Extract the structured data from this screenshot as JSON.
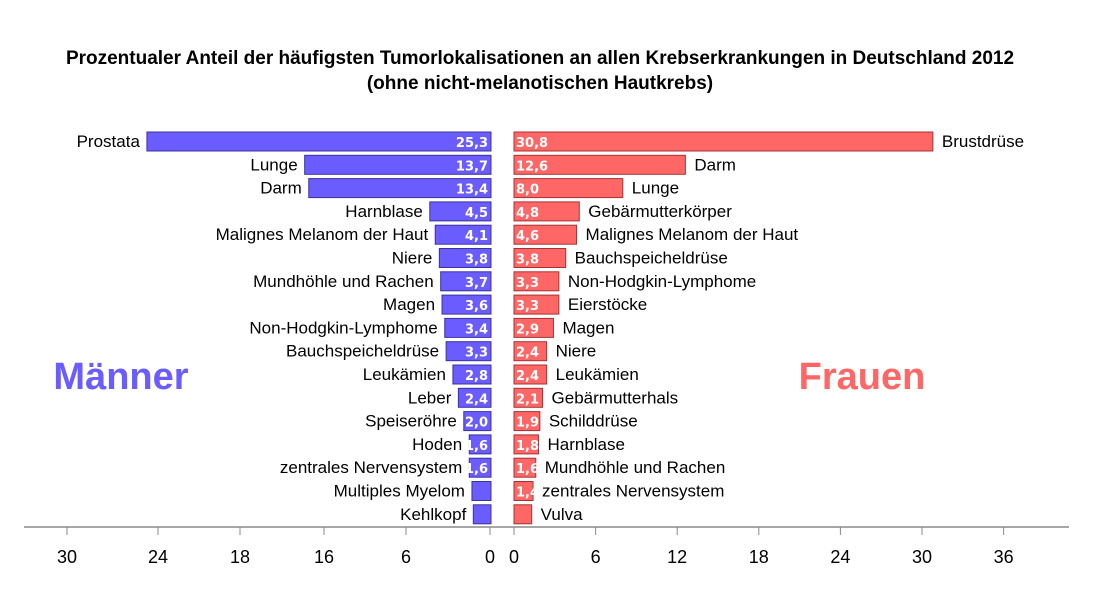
{
  "chart_data": {
    "type": "bar",
    "title": "Prozentualer Anteil der häufigsten Tumorlokalisationen an allen Krebserkrankungen in Deutschland 2012",
    "subtitle": "(ohne nicht-melanotischen Hautkrebs)",
    "colors": {
      "men": "#6a5cff",
      "women": "#ff6666"
    },
    "men": {
      "label": "Männer",
      "categories": [
        "Prostata",
        "Lunge",
        "Darm",
        "Harnblase",
        "Malignes Melanom der Haut",
        "Niere",
        "Mundhöhle und Rachen",
        "Magen",
        "Non-Hodgkin-Lymphome",
        "Bauchspeicheldrüse",
        "Leukämien",
        "Leber",
        "Speiseröhre",
        "Hoden",
        "zentrales Nervensystem",
        "Multiples Myelom",
        "Kehlkopf"
      ],
      "values": [
        25.3,
        13.7,
        13.4,
        4.5,
        4.1,
        3.8,
        3.7,
        3.6,
        3.4,
        3.3,
        2.8,
        2.4,
        2.0,
        1.6,
        1.6,
        1.4,
        1.3
      ],
      "value_labels": [
        "25,3",
        "13,7",
        "13,4",
        "4,5",
        "4,1",
        "3,8",
        "3,7",
        "3,6",
        "3,4",
        "3,3",
        "2,8",
        "2,4",
        "2,0",
        "1,6",
        "1,6",
        "",
        ""
      ],
      "tick_labels": [
        "30",
        "24",
        "18",
        "16",
        "6",
        "0"
      ]
    },
    "women": {
      "label": "Frauen",
      "categories": [
        "Brustdrüse",
        "Darm",
        "Lunge",
        "Gebärmutterkörper",
        "Malignes Melanom der Haut",
        "Bauchspeicheldrüse",
        "Non-Hodgkin-Lymphome",
        "Eierstöcke",
        "Magen",
        "Niere",
        "Leukämien",
        "Gebärmutterhals",
        "Schilddrüse",
        "Harnblase",
        "Mundhöhle und Rachen",
        "zentrales Nervensystem",
        "Vulva"
      ],
      "values": [
        30.8,
        12.6,
        8.0,
        4.8,
        4.6,
        3.8,
        3.3,
        3.3,
        2.9,
        2.4,
        2.4,
        2.1,
        1.9,
        1.8,
        1.6,
        1.4,
        1.3
      ],
      "value_labels": [
        "30,8",
        "12,6",
        "8,0",
        "4,8",
        "4,6",
        "3,8",
        "3,3",
        "3,3",
        "2,9",
        "2,4",
        "2,4",
        "2,1",
        "1,9",
        "1,8",
        "1,6",
        "1,4",
        ""
      ],
      "tick_labels": [
        "0",
        "6",
        "12",
        "18",
        "24",
        "30",
        "36"
      ]
    },
    "xlim": [
      0,
      36
    ],
    "grid": false
  }
}
